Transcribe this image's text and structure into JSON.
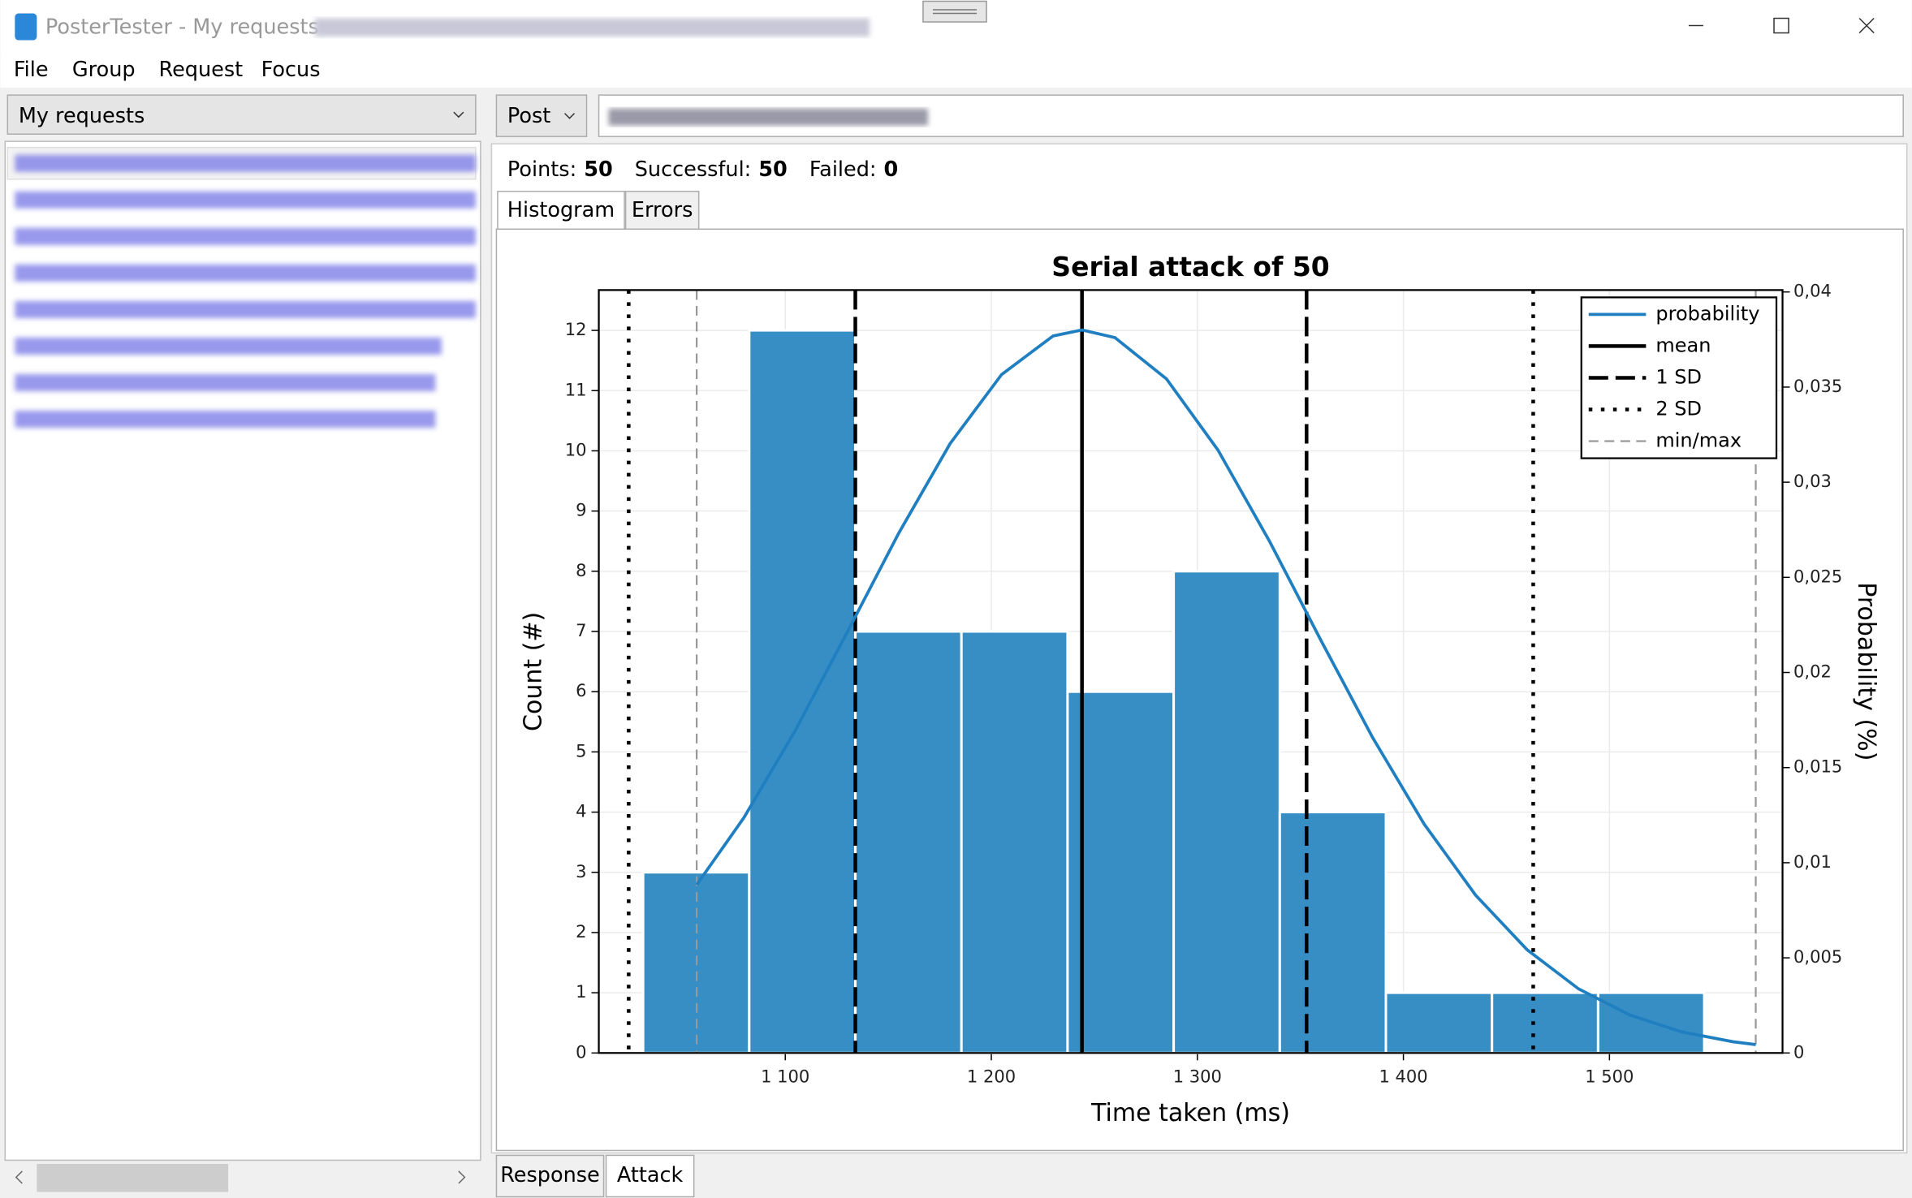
{
  "window": {
    "title": "PosterTester - My requests -",
    "menu": [
      "File",
      "Group",
      "Request",
      "Focus"
    ],
    "collection": "My requests",
    "method": "Post",
    "stats": [
      {
        "label": "Points:",
        "value": 50
      },
      {
        "label": "Successful:",
        "value": 50
      },
      {
        "label": "Failed:",
        "value": 0
      }
    ],
    "tabs": [
      "Histogram",
      "Errors"
    ],
    "bottom_tabs": [
      "Response",
      "Attack"
    ]
  },
  "chart_data": {
    "type": "histogram",
    "title": "Serial attack of 50",
    "x_label": "Time taken (ms)",
    "y_label": "Count (#)",
    "y2_label": "Probability (%)",
    "bins": [
      1031,
      1082.5,
      1134,
      1185.5,
      1237,
      1288.5,
      1340,
      1391.5,
      1443,
      1494.5,
      1546
    ],
    "values": [
      3,
      12,
      7,
      7,
      6,
      8,
      4,
      1,
      1,
      1
    ],
    "color": "#368ec4",
    "series": [
      {
        "name": "probability",
        "color": "#1f7fc0",
        "axis": "y2",
        "x": [
          1057,
          1080,
          1105,
          1130,
          1155,
          1180,
          1205,
          1230,
          1244,
          1260,
          1285,
          1310,
          1335,
          1360,
          1385,
          1410,
          1435,
          1460,
          1485,
          1510,
          1535,
          1560,
          1571
        ],
        "values": [
          0.00884,
          0.01238,
          0.01698,
          0.0221,
          0.02731,
          0.03203,
          0.03566,
          0.03769,
          0.038,
          0.0376,
          0.03543,
          0.03169,
          0.0269,
          0.02168,
          0.01659,
          0.01204,
          0.0083,
          0.00543,
          0.00337,
          0.00199,
          0.00111,
          0.00059,
          0.00044
        ]
      }
    ],
    "reference_lines": [
      {
        "name": "mean",
        "color": "#000000",
        "values": [
          1244
        ]
      },
      {
        "name": "1 SD",
        "color": "#000000",
        "values": [
          1134,
          1353
        ]
      },
      {
        "name": "2 SD",
        "color": "#000000",
        "values": [
          1024,
          1463
        ]
      },
      {
        "name": "min/max",
        "color": "#999999",
        "values": [
          1057,
          1571
        ]
      }
    ],
    "xlim": [
      1009.5,
      1584
    ],
    "xticks": [
      {
        "value": 1100,
        "label": "1 100"
      },
      {
        "value": 1200,
        "label": "1 200"
      },
      {
        "value": 1300,
        "label": "1 300"
      },
      {
        "value": 1400,
        "label": "1 400"
      },
      {
        "value": 1500,
        "label": "1 500"
      }
    ],
    "ylim": [
      0,
      12.67
    ],
    "yticks": [
      0,
      1,
      2,
      3,
      4,
      5,
      6,
      7,
      8,
      9,
      10,
      11,
      12
    ],
    "y2lim": [
      0,
      0.0401
    ],
    "y2ticks": [
      0,
      {
        "value": 0.005,
        "label": "0,005"
      },
      {
        "value": 0.01,
        "label": "0,01"
      },
      {
        "value": 0.015,
        "label": "0,015"
      },
      {
        "value": 0.02,
        "label": "0,02"
      },
      {
        "value": 0.025,
        "label": "0,025"
      },
      {
        "value": 0.03,
        "label": "0,03"
      },
      {
        "value": 0.035,
        "label": "0,035"
      },
      {
        "value": 0.04,
        "label": "0,04"
      }
    ],
    "grid": true,
    "legend": "upper right"
  }
}
